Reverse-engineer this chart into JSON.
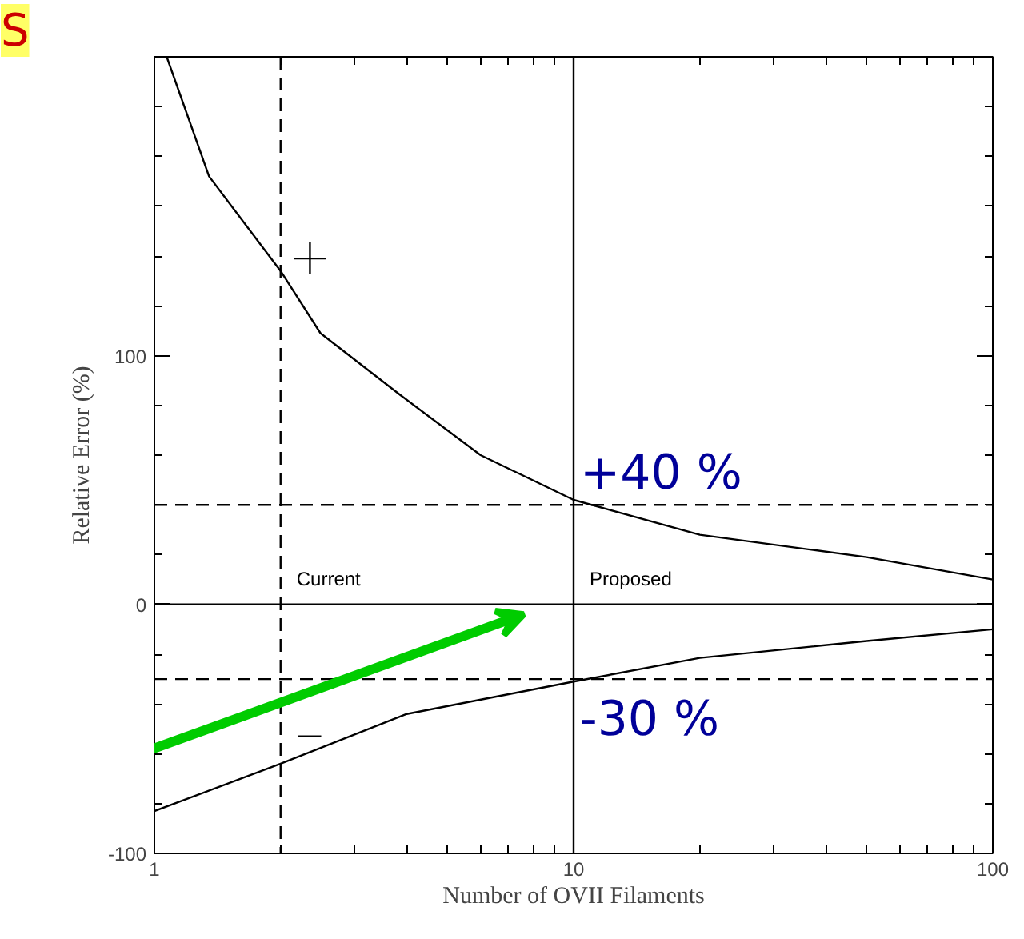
{
  "chart_data": {
    "type": "line",
    "xlabel": "Number of OVII Filaments",
    "ylabel": "Relative Error (%)",
    "log": "x",
    "grid": false,
    "marker": "none",
    "line_style": "solid",
    "xlim": [
      1,
      100
    ],
    "xticks": [
      1,
      10,
      100
    ],
    "ylim": [
      -100,
      220
    ],
    "yticks": [
      -100,
      0,
      100
    ],
    "series": [
      {
        "color": "#000000",
        "x": [
          1.07,
          1.35,
          2,
          2.49,
          3.87,
          6,
          10,
          20,
          50,
          100
        ],
        "values": [
          220,
          172,
          134,
          109,
          84,
          60,
          42,
          28,
          19,
          10
        ]
      },
      {
        "color": "#000000",
        "x": [
          1,
          2,
          4,
          10,
          20,
          50,
          100
        ],
        "values": [
          -83,
          -64,
          -44,
          -31,
          -21.5,
          -14.7,
          -10
        ]
      },
      {
        "type": "scatter",
        "marker": "cross",
        "color": "#000000",
        "x": [
          2.35
        ],
        "values": [
          139
        ]
      },
      {
        "type": "line",
        "color": "#000000",
        "x": [
          2.2,
          2.5
        ],
        "values": [
          -53,
          -53
        ]
      }
    ],
    "ref_lines": [
      {
        "axis": "x",
        "value": 2,
        "line_style": "dashed",
        "color": "#000000",
        "label": "Current"
      },
      {
        "axis": "x",
        "value": 10,
        "line_style": "solid",
        "color": "#000000",
        "label": "Proposed"
      },
      {
        "axis": "y",
        "value": 0,
        "line_style": "solid",
        "color": "#000000"
      },
      {
        "axis": "y",
        "value": 40,
        "line_style": "dashed",
        "color": "#000000",
        "label": "+40 %"
      },
      {
        "axis": "y",
        "value": -30,
        "line_style": "dashed",
        "color": "#000000",
        "label": "-30 %"
      }
    ],
    "annotations": [
      "S"
    ]
  }
}
